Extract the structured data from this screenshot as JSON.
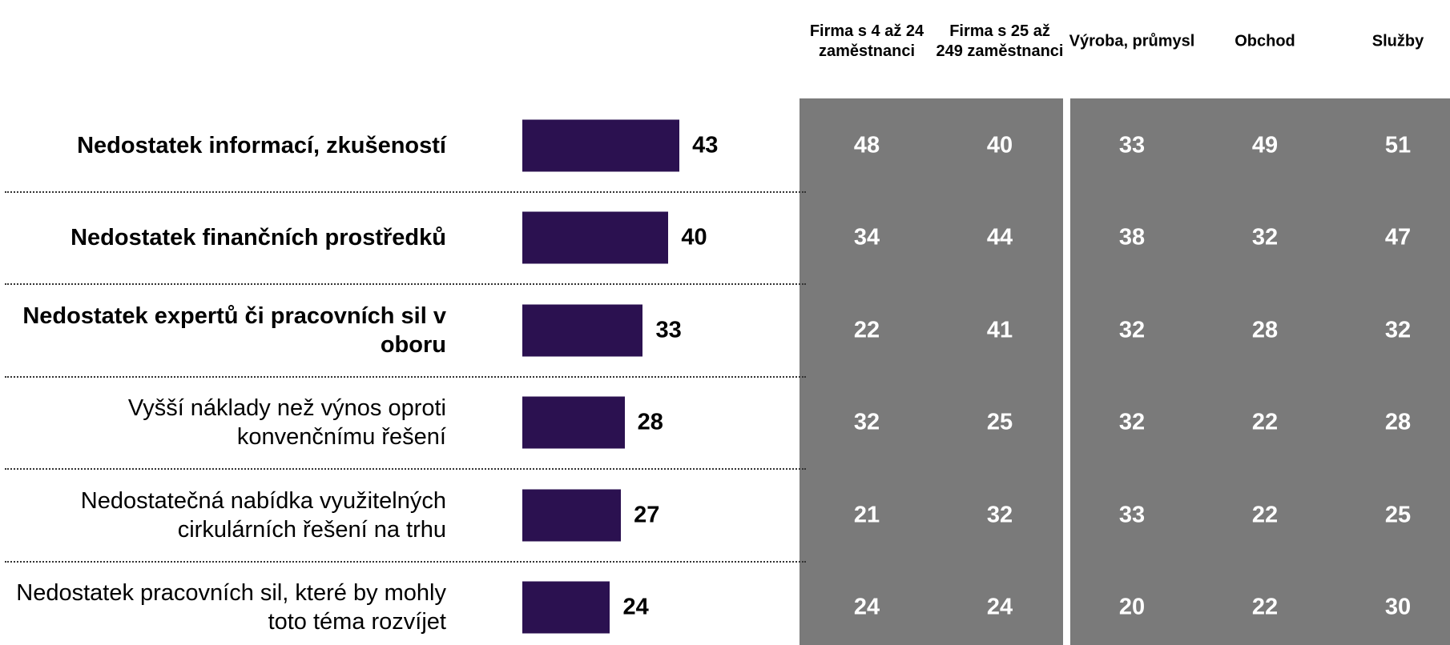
{
  "chart_data": {
    "type": "bar",
    "orientation": "horizontal",
    "color": "#2b1150",
    "categories": [
      "Nedostatek informací, zkušeností",
      "Nedostatek finančních prostředků",
      "Nedostatek expertů či pracovních sil v oboru",
      "Vyšší náklady než výnos oproti konvenčnímu řešení",
      "Nedostatečná nabídka využitelných cirkulárních řešení na trhu",
      "Nedostatek pracovních sil, které by mohly toto téma rozvíjet"
    ],
    "values": [
      43,
      40,
      33,
      28,
      27,
      24
    ],
    "table": {
      "columns": [
        "Firma s 4 až 24 zaměstnanci",
        "Firma s 25 až 249 zaměstnanci",
        "Výroba, průmysl",
        "Obchod",
        "Služby"
      ],
      "rows": [
        [
          48,
          40,
          33,
          49,
          51
        ],
        [
          34,
          44,
          38,
          32,
          47
        ],
        [
          22,
          41,
          32,
          28,
          32
        ],
        [
          32,
          25,
          32,
          22,
          28
        ],
        [
          21,
          32,
          33,
          22,
          25
        ],
        [
          24,
          24,
          20,
          22,
          30
        ]
      ]
    }
  }
}
